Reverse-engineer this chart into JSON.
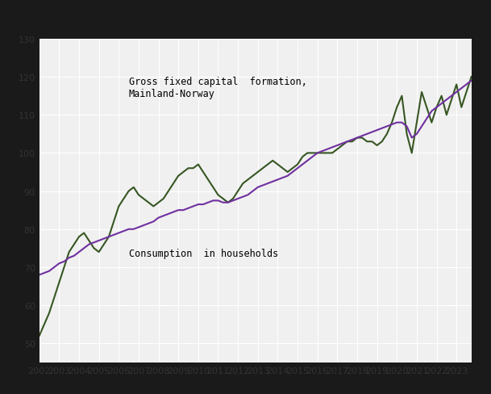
{
  "consumption_label": "Consumption  in households",
  "capital_label": "Gross fixed capital  formation,\nMainland-Norway",
  "background_color": "#f5f5f5",
  "outer_background": "#1a1a1a",
  "plot_background": "#f0f0f0",
  "grid_color": "#ffffff",
  "consumption_color": "#7030a0",
  "capital_color": "#375623",
  "line_width": 1.5,
  "consumption": [
    68,
    68.5,
    69,
    70,
    71,
    71.5,
    72.5,
    73,
    74,
    75,
    76,
    76.5,
    77,
    77.5,
    78,
    78.5,
    79,
    79.5,
    80,
    80,
    80.5,
    81,
    81.5,
    82,
    83,
    83.5,
    84,
    84.5,
    85,
    85,
    85.5,
    86,
    86.5,
    86.5,
    87,
    87.5,
    87.5,
    87,
    87,
    87.5,
    88,
    88.5,
    89,
    90,
    91,
    91.5,
    92,
    92.5,
    93,
    93.5,
    94,
    95,
    96,
    97,
    98,
    99,
    100,
    100.5,
    101,
    101.5,
    102,
    102.5,
    103,
    103.5,
    104,
    104.5,
    105,
    105.5,
    106,
    106.5,
    107,
    107.5,
    108,
    108,
    107,
    104,
    105,
    107,
    109,
    111,
    112,
    113,
    114,
    115,
    116,
    117,
    118,
    119
  ],
  "capital": [
    52,
    55,
    58,
    62,
    66,
    70,
    74,
    76,
    78,
    79,
    77,
    75,
    74,
    76,
    78,
    82,
    86,
    88,
    90,
    91,
    89,
    88,
    87,
    86,
    87,
    88,
    90,
    92,
    94,
    95,
    96,
    96,
    97,
    95,
    93,
    91,
    89,
    88,
    87,
    88,
    90,
    92,
    93,
    94,
    95,
    96,
    97,
    98,
    97,
    96,
    95,
    96,
    97,
    99,
    100,
    100,
    100,
    100,
    100,
    100,
    101,
    102,
    103,
    103,
    104,
    104,
    103,
    103,
    102,
    103,
    105,
    108,
    112,
    115,
    105,
    100,
    108,
    116,
    112,
    108,
    112,
    115,
    110,
    114,
    118,
    112,
    116,
    120
  ],
  "n_quarters": 88,
  "start_year": 2002,
  "ylim": [
    45,
    130
  ],
  "xlim": [
    0,
    87
  ]
}
